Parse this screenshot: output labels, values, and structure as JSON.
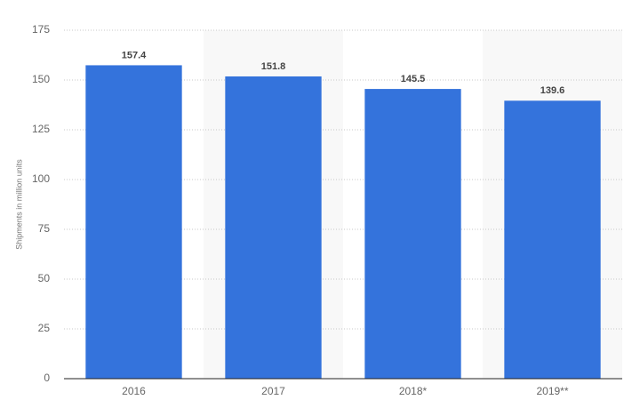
{
  "chart_data": {
    "type": "bar",
    "y_label": "Shipments in million units",
    "categories": [
      "2016",
      "2017",
      "2018*",
      "2019**"
    ],
    "values": [
      157.4,
      151.8,
      145.5,
      139.6
    ],
    "color": "#3473dc",
    "ylim": [
      0,
      175
    ],
    "yticks": [
      0,
      25,
      50,
      75,
      100,
      125,
      150,
      175
    ],
    "grid": true
  }
}
